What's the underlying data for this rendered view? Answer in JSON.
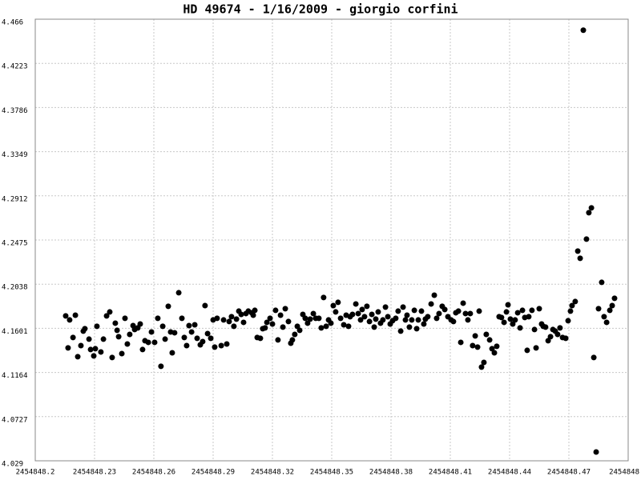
{
  "chart_data": {
    "type": "scatter",
    "title": "HD 49674 - 1/16/2009 - giorgio corfini",
    "color": "#000000",
    "grid": true,
    "xlim": [
      2454848.2,
      2454848.5
    ],
    "xticks": [
      2454848.2,
      2454848.23,
      2454848.26,
      2454848.29,
      2454848.32,
      2454848.35,
      2454848.38,
      2454848.41,
      2454848.44,
      2454848.47,
      {
        "value": 2454848.5,
        "label": "2454848"
      }
    ],
    "ylim": [
      4.029,
      4.466
    ],
    "yticks": [
      4.029,
      4.0727,
      4.1164,
      4.1601,
      4.2038,
      4.2475,
      4.2912,
      4.3349,
      4.3786,
      4.4223,
      4.466
    ],
    "x": [
      2454848.2154,
      2454848.2166,
      2454848.2174,
      2454848.2191,
      2454848.2203,
      2454848.2215,
      2454848.2231,
      2454848.2243,
      2454848.2251,
      2454848.2272,
      2454848.228,
      2454848.2296,
      2454848.2304,
      2454848.2312,
      2454848.2332,
      2454848.2345,
      2454848.2361,
      2454848.2377,
      2454848.2389,
      2454848.2405,
      2454848.2414,
      2454848.2422,
      2454848.2438,
      2454848.2454,
      2454848.2466,
      2454848.2478,
      2454848.2495,
      2454848.2503,
      2454848.2519,
      2454848.2531,
      2454848.2543,
      2454848.2555,
      2454848.2572,
      2454848.2588,
      2454848.2604,
      2454848.262,
      2454848.2636,
      2454848.2645,
      2454848.2657,
      2454848.2673,
      2454848.2685,
      2454848.2693,
      2454848.2705,
      2454848.2726,
      2454848.2742,
      2454848.2754,
      2454848.2766,
      2454848.2778,
      2454848.2791,
      2454848.2807,
      2454848.2819,
      2454848.2835,
      2454848.2847,
      2454848.2859,
      2454848.2872,
      2454848.2888,
      2454848.29,
      2454848.2908,
      2454848.292,
      2454848.2941,
      2454848.2953,
      2454848.2969,
      2454848.2981,
      2454848.2993,
      2454848.3005,
      2454848.3018,
      2454848.303,
      2454848.3042,
      2454848.3054,
      2454848.3066,
      2454848.3078,
      2454848.3095,
      2454848.3103,
      2454848.3111,
      2454848.3123,
      2454848.3139,
      2454848.3151,
      2454848.3163,
      2454848.3172,
      2454848.3188,
      2454848.32,
      2454848.3216,
      2454848.3228,
      2454848.3241,
      2454848.3253,
      2454848.3265,
      2454848.3281,
      2454848.3293,
      2454848.3301,
      2454848.3313,
      2454848.3326,
      2454848.3338,
      2454848.3354,
      2454848.3366,
      2454848.3378,
      2454848.3391,
      2454848.3407,
      2454848.3419,
      2454848.3435,
      2454848.3447,
      2454848.3459,
      2454848.3472,
      2454848.3484,
      2454848.3496,
      2454848.3508,
      2454848.352,
      2454848.3532,
      2454848.3545,
      2454848.3561,
      2454848.3573,
      2454848.3585,
      2454848.3593,
      2454848.3605,
      2454848.3622,
      2454848.3634,
      2454848.3646,
      2454848.3654,
      2454848.3666,
      2454848.3678,
      2454848.3691,
      2454848.3703,
      2454848.3715,
      2454848.3723,
      2454848.3735,
      2454848.3747,
      2454848.3759,
      2454848.3772,
      2454848.3784,
      2454848.3796,
      2454848.3808,
      2454848.3824,
      2454848.3836,
      2454848.3849,
      2454848.3861,
      2454848.3873,
      2454848.3881,
      2454848.3893,
      2454848.3905,
      2454848.3918,
      2454848.393,
      2454848.3938,
      2454848.3954,
      2454848.3966,
      2454848.3974,
      2454848.3986,
      2454848.4003,
      2454848.4019,
      2454848.4031,
      2454848.4043,
      2454848.4059,
      2454848.4072,
      2454848.4088,
      2454848.4104,
      2454848.4116,
      2454848.4128,
      2454848.4141,
      2454848.4153,
      2454848.4165,
      2454848.4177,
      2454848.4189,
      2454848.4201,
      2454848.4213,
      2454848.4226,
      2454848.4238,
      2454848.4246,
      2454848.4258,
      2454848.427,
      2454848.4282,
      2454848.4299,
      2454848.4311,
      2454848.4323,
      2454848.4335,
      2454848.4347,
      2454848.4359,
      2454848.4372,
      2454848.4384,
      2454848.4392,
      2454848.4404,
      2454848.4416,
      2454848.4428,
      2454848.4441,
      2454848.4453,
      2454848.4465,
      2454848.4477,
      2454848.4489,
      2454848.4497,
      2454848.4513,
      2454848.4526,
      2454848.4534,
      2454848.455,
      2454848.4562,
      2454848.457,
      2454848.4582,
      2454848.4595,
      2454848.4607,
      2454848.4619,
      2454848.4631,
      2454848.4643,
      2454848.4655,
      2454848.4668,
      2454848.4684,
      2454848.4696,
      2454848.4708,
      2454848.4716,
      2454848.4732,
      2454848.4745,
      2454848.4757,
      2454848.4773,
      2454848.4789,
      2454848.4801,
      2454848.4814,
      2454848.4826,
      2454848.4838,
      2454848.485,
      2454848.4866,
      2454848.4878,
      2454848.4891,
      2454848.4907,
      2454848.4919,
      2454848.4931
    ],
    "values": [
      4.1724,
      4.1407,
      4.1684,
      4.151,
      4.1731,
      4.132,
      4.143,
      4.1573,
      4.1597,
      4.1494,
      4.1391,
      4.1328,
      4.1399,
      4.1621,
      4.1367,
      4.1494,
      4.1724,
      4.1763,
      4.1312,
      4.1652,
      4.1581,
      4.1518,
      4.1351,
      4.17,
      4.1446,
      4.1541,
      4.1628,
      4.1589,
      4.1605,
      4.1644,
      4.1391,
      4.1478,
      4.1462,
      4.1565,
      4.1462,
      4.17,
      4.1225,
      4.1621,
      4.1494,
      4.1819,
      4.1565,
      4.1359,
      4.1557,
      4.1953,
      4.17,
      4.151,
      4.143,
      4.1628,
      4.1565,
      4.1636,
      4.1502,
      4.1438,
      4.147,
      4.1826,
      4.1549,
      4.1502,
      4.1684,
      4.1415,
      4.17,
      4.143,
      4.1684,
      4.1446,
      4.1668,
      4.1716,
      4.1621,
      4.1692,
      4.1771,
      4.1739,
      4.166,
      4.1747,
      4.1771,
      4.1755,
      4.1731,
      4.1779,
      4.151,
      4.1502,
      4.1597,
      4.1605,
      4.166,
      4.17,
      4.1644,
      4.1779,
      4.1486,
      4.1731,
      4.1613,
      4.1795,
      4.1668,
      4.1454,
      4.1486,
      4.1541,
      4.1621,
      4.1581,
      4.1739,
      4.17,
      4.1652,
      4.1692,
      4.1747,
      4.17,
      4.17,
      4.1605,
      4.1906,
      4.1621,
      4.1684,
      4.1652,
      4.1826,
      4.1763,
      4.1858,
      4.17,
      4.1636,
      4.1731,
      4.1621,
      4.1716,
      4.1739,
      4.1842,
      4.1747,
      4.1684,
      4.1787,
      4.1716,
      4.1819,
      4.1668,
      4.1739,
      4.1613,
      4.1692,
      4.1763,
      4.1652,
      4.1684,
      4.1811,
      4.1716,
      4.1644,
      4.1676,
      4.17,
      4.1771,
      4.1573,
      4.1811,
      4.1684,
      4.1731,
      4.1613,
      4.1684,
      4.1779,
      4.1597,
      4.1684,
      4.1771,
      4.1644,
      4.1692,
      4.1716,
      4.1842,
      4.1929,
      4.17,
      4.1747,
      4.1819,
      4.1787,
      4.1716,
      4.1684,
      4.1668,
      4.1755,
      4.1771,
      4.1462,
      4.185,
      4.1747,
      4.1684,
      4.1747,
      4.143,
      4.1526,
      4.1415,
      4.1771,
      4.1217,
      4.1264,
      4.1541,
      4.1486,
      4.1399,
      4.1359,
      4.1423,
      4.1716,
      4.1708,
      4.166,
      4.1763,
      4.1834,
      4.1692,
      4.1644,
      4.1684,
      4.1755,
      4.1605,
      4.1779,
      4.1708,
      4.1383,
      4.1716,
      4.1779,
      4.1589,
      4.1407,
      4.1795,
      4.1644,
      4.1621,
      4.1613,
      4.1478,
      4.1518,
      4.1589,
      4.1573,
      4.1541,
      4.1605,
      4.151,
      4.1502,
      4.1676,
      4.1771,
      4.1826,
      4.1866,
      4.2365,
      4.2294,
      4.4551,
      4.2484,
      4.2745,
      4.2793,
      4.1312,
      4.0377,
      4.1795,
      4.2056,
      4.1716,
      4.166,
      4.1779,
      4.1826,
      4.1898
    ]
  }
}
